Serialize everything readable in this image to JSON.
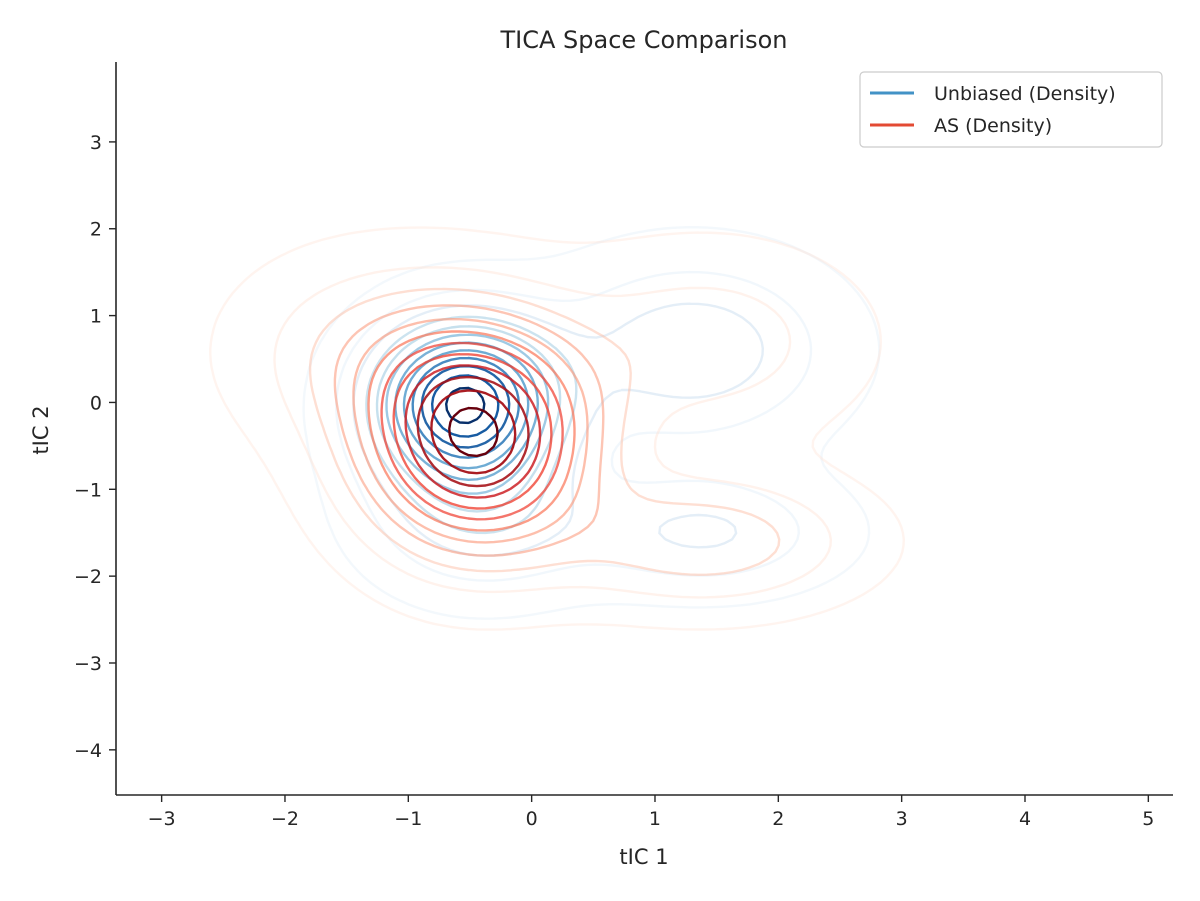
{
  "chart_data": {
    "type": "contour",
    "title": "TICA Space Comparison",
    "xlabel": "tIC 1",
    "ylabel": "tIC 2",
    "xlim": [
      -3.37,
      5.2
    ],
    "ylim": [
      -4.52,
      3.92
    ],
    "xticks": [
      -3,
      -2,
      -1,
      0,
      1,
      2,
      3,
      4,
      5
    ],
    "yticks": [
      -4,
      -3,
      -2,
      -1,
      0,
      1,
      2,
      3
    ],
    "xtick_labels": [
      "−3",
      "−2",
      "−1",
      "0",
      "1",
      "2",
      "3",
      "4",
      "5"
    ],
    "ytick_labels": [
      "−4",
      "−3",
      "−2",
      "−1",
      "0",
      "1",
      "2",
      "3"
    ],
    "grid": false,
    "legend_position": "top-right",
    "series": [
      {
        "name": "Unbiased (Density)",
        "color": "#4292c6",
        "palette": [
          "#deebf7",
          "#c6dbef",
          "#9ecae1",
          "#6baed6",
          "#4292c6",
          "#2171b5",
          "#08519c",
          "#08306b"
        ],
        "modes": [
          {
            "x": -0.55,
            "y": 0.0,
            "sx": 0.5,
            "sy": 0.62,
            "w": 1.0
          },
          {
            "x": 1.3,
            "y": 0.6,
            "sx": 0.75,
            "sy": 0.7,
            "w": 0.28
          },
          {
            "x": 1.4,
            "y": -1.5,
            "sx": 0.7,
            "sy": 0.45,
            "w": 0.22
          },
          {
            "x": -0.4,
            "y": -1.3,
            "sx": 0.6,
            "sy": 0.6,
            "w": 0.25
          }
        ]
      },
      {
        "name": "AS (Density)",
        "color": "#e34a33",
        "palette": [
          "#fee0d2",
          "#fcbba1",
          "#fc9272",
          "#fb6a4a",
          "#ef3b2c",
          "#cb181d",
          "#a50f15",
          "#67000d"
        ],
        "modes": [
          {
            "x": -0.45,
            "y": -0.4,
            "sx": 0.62,
            "sy": 0.85,
            "w": 1.0
          },
          {
            "x": 1.4,
            "y": -1.6,
            "sx": 0.8,
            "sy": 0.5,
            "w": 0.28
          },
          {
            "x": 1.4,
            "y": 0.7,
            "sx": 0.8,
            "sy": 0.7,
            "w": 0.18
          },
          {
            "x": -1.3,
            "y": 0.6,
            "sx": 0.7,
            "sy": 0.7,
            "w": 0.2
          }
        ]
      }
    ]
  }
}
